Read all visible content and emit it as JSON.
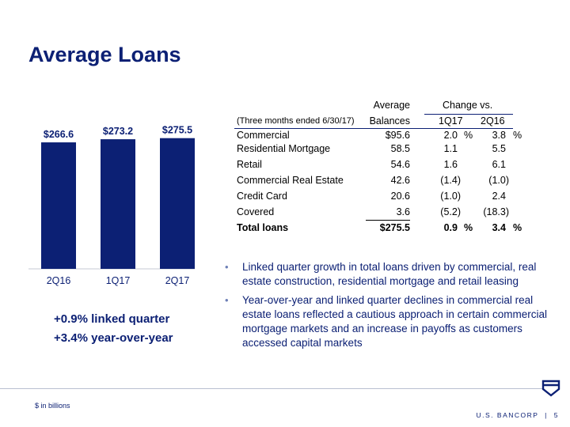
{
  "title": "Average Loans",
  "chart_data": {
    "type": "bar",
    "categories": [
      "2Q16",
      "1Q17",
      "2Q17"
    ],
    "values": [
      266.6,
      273.2,
      275.5
    ],
    "value_labels": [
      "$266.6",
      "$273.2",
      "$275.5"
    ],
    "ylim": [
      0,
      290
    ],
    "colors": {
      "bar": "#0c2074"
    }
  },
  "growth": {
    "linked_quarter": "+0.9% linked quarter",
    "year_over_year": "+3.4% year-over-year"
  },
  "table": {
    "header_average": "Average",
    "header_change": "Change vs.",
    "subheader_period": "(Three months ended 6/30/17)",
    "subheader_balances": "Balances",
    "subheader_1q17": "1Q17",
    "subheader_2q16": "2Q16",
    "rows": [
      {
        "label": "Commercial",
        "balance": "$95.6",
        "c1q17": "2.0",
        "c1q17_pct": "%",
        "c2q16": "3.8",
        "c2q16_pct": "%"
      },
      {
        "label": "Residential Mortgage",
        "balance": "58.5",
        "c1q17": "1.1",
        "c2q16": "5.5"
      },
      {
        "label": "Retail",
        "balance": "54.6",
        "c1q17": "1.6",
        "c2q16": "6.1"
      },
      {
        "label": "Commercial Real Estate",
        "balance": "42.6",
        "c1q17": "(1.4)",
        "c2q16": "(1.0)"
      },
      {
        "label": "Credit Card",
        "balance": "20.6",
        "c1q17": "(1.0)",
        "c2q16": "2.4"
      },
      {
        "label": "Covered",
        "balance": "3.6",
        "c1q17": "(5.2)",
        "c2q16": "(18.3)"
      }
    ],
    "total": {
      "label": "Total loans",
      "balance": "$275.5",
      "c1q17": "0.9",
      "c1q17_pct": "%",
      "c2q16": "3.4",
      "c2q16_pct": "%"
    }
  },
  "bullets": [
    "Linked quarter growth in total loans driven by commercial, real estate construction, residential mortgage and retail leasing",
    "Year-over-year and linked quarter declines in commercial real estate loans reflected a cautious approach in certain commercial mortgage markets and an increase in payoffs as customers accessed capital markets"
  ],
  "bullet_char": "•",
  "footer": {
    "note": "$ in billions",
    "brand": "U.S. BANCORP",
    "separator": "|",
    "page": "5"
  }
}
